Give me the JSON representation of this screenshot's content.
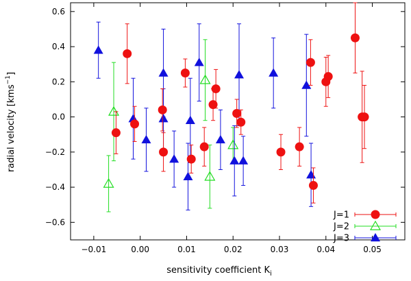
{
  "chart_data": {
    "type": "scatter",
    "xlabel": "sensitivity coefficient K",
    "xlabel_sub": "i",
    "ylabel": "radial velocity [kms",
    "ylabel_sup": "−1",
    "ylabel_end": "]",
    "xlim": [
      -0.015,
      0.057
    ],
    "ylim": [
      -0.7,
      0.65
    ],
    "x_ticks": [
      -0.01,
      0.0,
      0.01,
      0.02,
      0.03,
      0.04,
      0.05
    ],
    "x_tick_labels": [
      "−0.01",
      "0.00",
      "0.01",
      "0.02",
      "0.03",
      "0.04",
      "0.05"
    ],
    "y_ticks": [
      -0.6,
      -0.4,
      -0.2,
      0.0,
      0.2,
      0.4,
      0.6
    ],
    "y_tick_labels": [
      "−0.6",
      "−0.4",
      "−0.2",
      "0.0",
      "0.2",
      "0.4",
      "0.6"
    ],
    "legend_position": "bottom-right",
    "series": [
      {
        "name": "J=1",
        "marker": "circle",
        "color": "#ee1111",
        "points": [
          {
            "x": -0.0028,
            "y": 0.36,
            "err": 0.17
          },
          {
            "x": -0.0052,
            "y": -0.09,
            "err": 0.12
          },
          {
            "x": -0.0012,
            "y": -0.04,
            "err": 0.1
          },
          {
            "x": 0.0048,
            "y": 0.04,
            "err": 0.12
          },
          {
            "x": 0.005,
            "y": -0.2,
            "err": 0.11
          },
          {
            "x": 0.0097,
            "y": 0.25,
            "err": 0.08
          },
          {
            "x": 0.011,
            "y": -0.24,
            "err": 0.08
          },
          {
            "x": 0.0138,
            "y": -0.17,
            "err": 0.11
          },
          {
            "x": 0.0157,
            "y": 0.07,
            "err": 0.09
          },
          {
            "x": 0.0163,
            "y": 0.16,
            "err": 0.11
          },
          {
            "x": 0.0208,
            "y": 0.02,
            "err": 0.08
          },
          {
            "x": 0.0217,
            "y": -0.03,
            "err": 0.07
          },
          {
            "x": 0.0303,
            "y": -0.2,
            "err": 0.1
          },
          {
            "x": 0.0343,
            "y": -0.17,
            "err": 0.11
          },
          {
            "x": 0.0367,
            "y": 0.31,
            "err": 0.13
          },
          {
            "x": 0.0373,
            "y": -0.39,
            "err": 0.1
          },
          {
            "x": 0.04,
            "y": 0.2,
            "err": 0.14
          },
          {
            "x": 0.0405,
            "y": 0.23,
            "err": 0.12
          },
          {
            "x": 0.0463,
            "y": 0.45,
            "err": 0.2
          },
          {
            "x": 0.0478,
            "y": 0.0,
            "err": 0.26
          },
          {
            "x": 0.0483,
            "y": 0.0,
            "err": 0.18
          }
        ]
      },
      {
        "name": "J=2",
        "marker": "triangle-open",
        "color": "#22dd22",
        "points": [
          {
            "x": -0.0068,
            "y": -0.38,
            "err": 0.16
          },
          {
            "x": -0.0057,
            "y": 0.03,
            "err": 0.28
          },
          {
            "x": 0.014,
            "y": 0.21,
            "err": 0.23
          },
          {
            "x": 0.015,
            "y": -0.34,
            "err": 0.18
          },
          {
            "x": 0.02,
            "y": -0.16,
            "err": 0.1
          }
        ]
      },
      {
        "name": "J=3",
        "marker": "triangle-filled",
        "color": "#1111dd",
        "points": [
          {
            "x": -0.009,
            "y": 0.38,
            "err": 0.16
          },
          {
            "x": -0.0015,
            "y": -0.01,
            "err": 0.23
          },
          {
            "x": 0.0013,
            "y": -0.13,
            "err": 0.18
          },
          {
            "x": 0.005,
            "y": 0.25,
            "err": 0.25
          },
          {
            "x": 0.005,
            "y": -0.01,
            "err": 0.17
          },
          {
            "x": 0.0073,
            "y": -0.24,
            "err": 0.16
          },
          {
            "x": 0.0103,
            "y": -0.34,
            "err": 0.19
          },
          {
            "x": 0.0108,
            "y": -0.02,
            "err": 0.24
          },
          {
            "x": 0.0127,
            "y": 0.31,
            "err": 0.22
          },
          {
            "x": 0.0173,
            "y": -0.13,
            "err": 0.17
          },
          {
            "x": 0.0203,
            "y": -0.25,
            "err": 0.2
          },
          {
            "x": 0.0213,
            "y": 0.24,
            "err": 0.29
          },
          {
            "x": 0.0222,
            "y": -0.25,
            "err": 0.14
          },
          {
            "x": 0.0287,
            "y": 0.25,
            "err": 0.2
          },
          {
            "x": 0.0358,
            "y": 0.18,
            "err": 0.29
          },
          {
            "x": 0.0368,
            "y": -0.33,
            "err": 0.18
          }
        ]
      }
    ]
  }
}
